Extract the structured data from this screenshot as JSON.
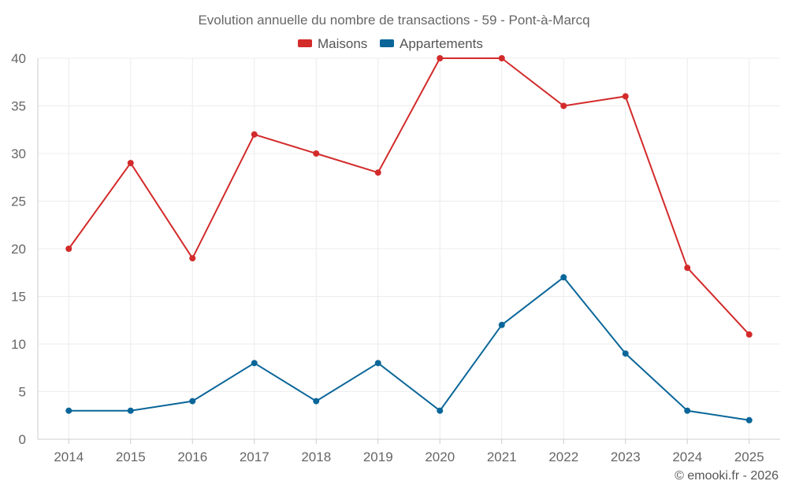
{
  "chart_data": {
    "type": "line",
    "title": "Evolution annuelle du nombre de transactions - 59 - Pont-à-Marcq",
    "xlabel": "",
    "ylabel": "",
    "categories": [
      "2014",
      "2015",
      "2016",
      "2017",
      "2018",
      "2019",
      "2020",
      "2021",
      "2022",
      "2023",
      "2024",
      "2025"
    ],
    "series": [
      {
        "name": "Maisons",
        "color": "#d32a2a",
        "values": [
          20,
          29,
          19,
          32,
          30,
          28,
          40,
          40,
          35,
          36,
          18,
          11
        ]
      },
      {
        "name": "Appartements",
        "color": "#0a6699",
        "values": [
          3,
          3,
          4,
          8,
          4,
          8,
          3,
          12,
          17,
          9,
          3,
          2
        ]
      }
    ],
    "ylim": [
      0,
      40
    ],
    "yticks": [
      0,
      5,
      10,
      15,
      20,
      25,
      30,
      35,
      40
    ],
    "grid": true,
    "legend_position": "top-center"
  },
  "footer": {
    "copyright": "© emooki.fr - 2026"
  }
}
